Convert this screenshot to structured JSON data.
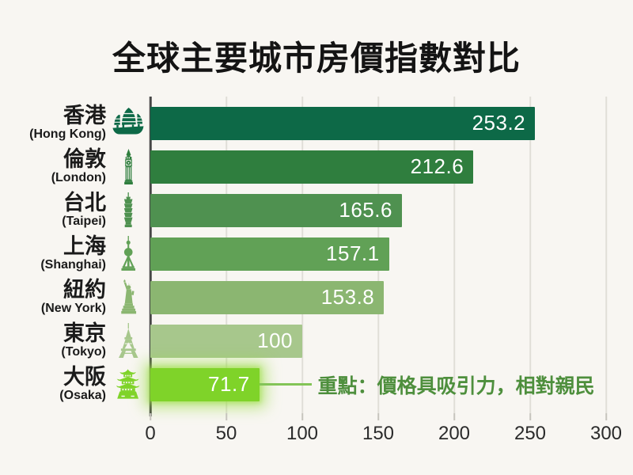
{
  "title": "全球主要城市房價指數對比",
  "colors": {
    "background": "#f8f6f2",
    "title_text": "#141414",
    "label_text": "#1b1b1b",
    "value_text": "#ffffff",
    "gridline": "#e0ded7",
    "axis_line": "#474747",
    "tick_text": "#2b2b2b",
    "annotation_text": "#4e8f3d",
    "annotation_line": "#83c457",
    "highlight_glow": "rgba(154,221,66,0.6)"
  },
  "chart_data": {
    "type": "bar",
    "orientation": "horizontal",
    "title": "全球主要城市房價指數對比",
    "value_axis": {
      "min": 0,
      "max": 300,
      "tick_labels": [
        "0",
        "50",
        "100",
        "150",
        "200",
        "250",
        "300"
      ],
      "grid": true,
      "grid_interval": 50
    },
    "categories": [
      "香港 (Hong Kong)",
      "倫敦 (London)",
      "台北 (Taipei)",
      "上海 (Shanghai)",
      "紐約 (New York)",
      "東京 (Tokyo)",
      "大阪 (Osaka)"
    ],
    "values": [
      253.2,
      212.6,
      165.6,
      157.1,
      153.8,
      100,
      71.7
    ],
    "bars": [
      {
        "city_zh": "香港",
        "city_en": "(Hong Kong)",
        "value": 253.2,
        "value_label": "253.2",
        "color": "#0d6947",
        "icon": "junk-boat-icon",
        "highlight": false
      },
      {
        "city_zh": "倫敦",
        "city_en": "(London)",
        "value": 212.6,
        "value_label": "212.6",
        "color": "#2f7e3e",
        "icon": "big-ben-icon",
        "highlight": false
      },
      {
        "city_zh": "台北",
        "city_en": "(Taipei)",
        "value": 165.6,
        "value_label": "165.6",
        "color": "#4f9150",
        "icon": "taipei-101-icon",
        "highlight": false
      },
      {
        "city_zh": "上海",
        "city_en": "(Shanghai)",
        "value": 157.1,
        "value_label": "157.1",
        "color": "#61a156",
        "icon": "oriental-pearl-tower-icon",
        "highlight": false
      },
      {
        "city_zh": "紐約",
        "city_en": "(New York)",
        "value": 153.8,
        "value_label": "153.8",
        "color": "#8bb671",
        "icon": "statue-of-liberty-icon",
        "highlight": false
      },
      {
        "city_zh": "東京",
        "city_en": "(Tokyo)",
        "value": 100,
        "value_label": "100",
        "color": "#a7c78c",
        "icon": "tokyo-tower-icon",
        "highlight": false
      },
      {
        "city_zh": "大阪",
        "city_en": "(Osaka)",
        "value": 71.7,
        "value_label": "71.7",
        "color": "#7fd329",
        "icon": "osaka-castle-icon",
        "highlight": true
      }
    ],
    "annotation": {
      "text": "重點：價格具吸引力，相對親民",
      "attached_to": "大阪 (Osaka)"
    },
    "legend": null
  }
}
